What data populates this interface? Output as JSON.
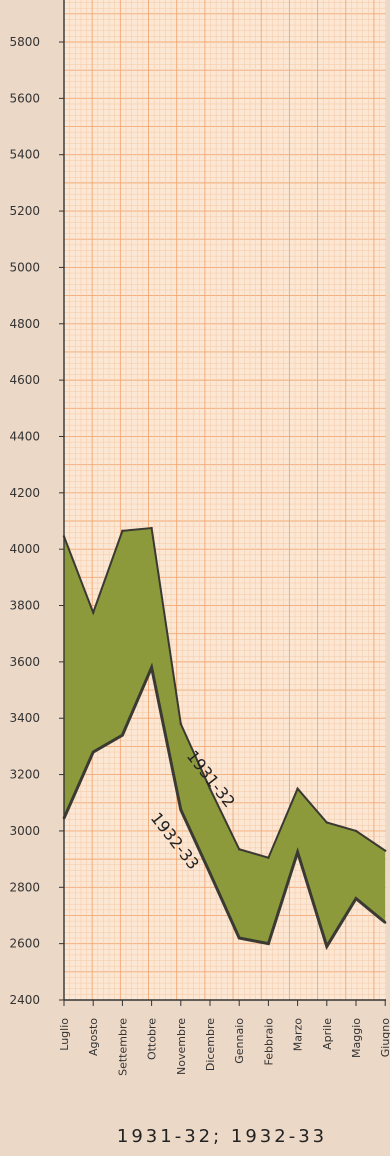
{
  "chart_data": {
    "type": "area",
    "categories": [
      "Luglio",
      "Agosto",
      "Settembre",
      "Ottobre",
      "Novembre",
      "Dicembre",
      "Gennaio",
      "Febbraio",
      "Marzo",
      "Aprile",
      "Maggio",
      "Giugno"
    ],
    "series": [
      {
        "name": "1931-32",
        "values": [
          4045,
          3775,
          4065,
          4075,
          3380,
          3150,
          2935,
          2905,
          3150,
          3030,
          3000,
          2930
        ]
      },
      {
        "name": "1932-33",
        "values": [
          3045,
          3280,
          3340,
          3580,
          3075,
          2850,
          2620,
          2600,
          2925,
          2590,
          2760,
          2675
        ]
      }
    ],
    "xlabel": "1931-32; 1932-33",
    "ylabel": "",
    "yticks": [
      2400,
      2600,
      2800,
      3000,
      3200,
      3400,
      3600,
      3800,
      4000,
      4200,
      4400,
      4600,
      4800,
      5000,
      5200,
      5400,
      5600,
      5800
    ],
    "ylim": [
      2400,
      5950
    ],
    "grid": true,
    "annotations": [
      "1931-32",
      "1932-33"
    ],
    "colors": {
      "fill": "#8c9a3c",
      "line": "#3a3a32",
      "grid_minor": "#f6c9a6",
      "grid_major": "#f1a874",
      "paper": "#fbe7d4",
      "page": "#ecd8c7"
    }
  }
}
